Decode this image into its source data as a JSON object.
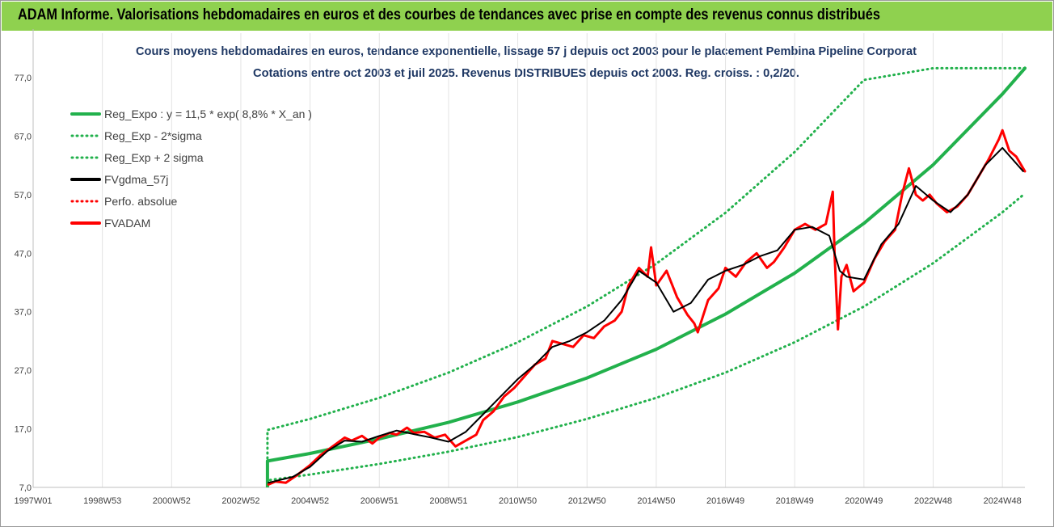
{
  "banner": {
    "title": "ADAM Informe. Valorisations hebdomadaires en euros et des courbes de tendances avec prise en compte des revenus connus distribués",
    "bg_color": "#8fd14f"
  },
  "chart_data": {
    "type": "line",
    "title": "Cours moyens hebdomadaires en euros, tendance exponentielle, lissage 57 j depuis oct 2003 pour le placement Pembina Pipeline Corporat",
    "subtitle": "Cotations entre oct 2003 et juil 2025. Revenus DISTRIBUES depuis oct 2003. Reg. croiss. : 0,2/20.",
    "x_ticks": [
      "1997W01",
      "1998W53",
      "2000W52",
      "2002W52",
      "2004W52",
      "2006W51",
      "2008W51",
      "2010W50",
      "2012W50",
      "2014W50",
      "2016W49",
      "2018W49",
      "2020W49",
      "2022W48",
      "2024W48"
    ],
    "x_tick_years": [
      1997.0,
      1999.0,
      2001.0,
      2003.0,
      2005.0,
      2007.0,
      2009.0,
      2011.0,
      2013.0,
      2015.0,
      2017.0,
      2019.0,
      2021.0,
      2023.0,
      2025.0
    ],
    "x_range": [
      1997.0,
      2025.65
    ],
    "y_ticks": [
      "7,0",
      "17,0",
      "27,0",
      "37,0",
      "47,0",
      "57,0",
      "67,0",
      "77,0"
    ],
    "y_range": [
      7,
      77
    ],
    "grid": "vertical",
    "legend_position": "top-left",
    "legend": [
      {
        "label": "Reg_Expo : y = 11,5 * exp( 8,8% *  X_an )",
        "color": "#22b14c",
        "style": "solid"
      },
      {
        "label": "Reg_Exp - 2*sigma",
        "color": "#22b14c",
        "style": "dotted"
      },
      {
        "label": "Reg_Exp + 2 sigma",
        "color": "#22b14c",
        "style": "dotted"
      },
      {
        "label": "FVgdma_57j",
        "color": "#000000",
        "style": "solid"
      },
      {
        "label": "Perfo. absolue",
        "color": "#ff0000",
        "style": "dotted"
      },
      {
        "label": "FVADAM",
        "color": "#ff0000",
        "style": "solid"
      }
    ],
    "series": [
      {
        "name": "Reg_Expo : y = 11,5 * exp( 8,8% *  X_an )",
        "x": [
          2003.77,
          2005,
          2007,
          2009,
          2011,
          2013,
          2015,
          2017,
          2019,
          2021,
          2023,
          2025,
          2025.65
        ],
        "y": [
          11.5,
          12.8,
          15.3,
          18.1,
          21.6,
          25.7,
          30.6,
          36.6,
          43.6,
          52.1,
          62.1,
          74.2,
          78.6
        ]
      },
      {
        "name": "Reg_Exp - 2*sigma",
        "x": [
          2003.77,
          2005,
          2007,
          2009,
          2011,
          2013,
          2015,
          2017,
          2019,
          2021,
          2023,
          2025,
          2025.65
        ],
        "y": [
          8.2,
          9.2,
          11.0,
          13.1,
          15.6,
          18.7,
          22.3,
          26.6,
          31.8,
          37.9,
          45.3,
          54.0,
          57.2
        ]
      },
      {
        "name": "Reg_Exp + 2 sigma",
        "x": [
          2003.77,
          2005,
          2007,
          2009,
          2011,
          2013,
          2015,
          2017,
          2019,
          2021,
          2023,
          2025,
          2025.65
        ],
        "y": [
          16.8,
          18.7,
          22.3,
          26.6,
          31.8,
          37.9,
          45.2,
          53.9,
          64.3,
          76.6,
          78.6,
          78.6,
          78.6
        ]
      },
      {
        "name": "FVgdma_57j",
        "x": [
          2003.8,
          2004.5,
          2005.0,
          2005.5,
          2006.0,
          2006.5,
          2007.0,
          2007.5,
          2008.0,
          2008.5,
          2009.0,
          2009.5,
          2010.0,
          2010.5,
          2011.0,
          2011.5,
          2012.0,
          2012.5,
          2013.0,
          2013.5,
          2014.0,
          2014.5,
          2015.0,
          2015.5,
          2016.0,
          2016.5,
          2017.0,
          2017.5,
          2018.0,
          2018.5,
          2019.0,
          2019.5,
          2020.0,
          2020.3,
          2020.5,
          2021.0,
          2021.5,
          2022.0,
          2022.5,
          2023.0,
          2023.5,
          2024.0,
          2024.5,
          2025.0,
          2025.6
        ],
        "y": [
          7.8,
          8.8,
          10.5,
          13.2,
          15.0,
          14.8,
          15.8,
          16.7,
          16.1,
          15.5,
          14.8,
          16.5,
          19.5,
          22.5,
          25.5,
          28.0,
          31.0,
          32.0,
          33.5,
          35.5,
          39.0,
          44.0,
          42.0,
          37.0,
          38.5,
          42.5,
          44.0,
          45.0,
          46.5,
          47.5,
          51.0,
          51.5,
          50.0,
          44.0,
          43.0,
          42.5,
          48.5,
          52.0,
          58.5,
          56.0,
          54.0,
          57.0,
          62.0,
          65.0,
          61.0
        ]
      },
      {
        "name": "FVADAM",
        "x": [
          2003.8,
          2004.0,
          2004.3,
          2004.6,
          2005.0,
          2005.3,
          2005.7,
          2006.0,
          2006.2,
          2006.5,
          2006.8,
          2007.0,
          2007.3,
          2007.5,
          2007.8,
          2008.0,
          2008.3,
          2008.6,
          2008.9,
          2009.2,
          2009.5,
          2009.8,
          2010.0,
          2010.3,
          2010.6,
          2010.9,
          2011.2,
          2011.5,
          2011.8,
          2012.0,
          2012.3,
          2012.6,
          2012.9,
          2013.2,
          2013.5,
          2013.8,
          2014.0,
          2014.2,
          2014.5,
          2014.75,
          2014.85,
          2015.0,
          2015.3,
          2015.6,
          2015.9,
          2016.1,
          2016.2,
          2016.5,
          2016.8,
          2017.0,
          2017.3,
          2017.6,
          2017.9,
          2018.2,
          2018.4,
          2018.7,
          2019.0,
          2019.3,
          2019.6,
          2019.9,
          2020.1,
          2020.15,
          2020.25,
          2020.35,
          2020.5,
          2020.7,
          2021.0,
          2021.3,
          2021.6,
          2021.9,
          2022.1,
          2022.3,
          2022.5,
          2022.7,
          2022.9,
          2023.1,
          2023.4,
          2023.7,
          2024.0,
          2024.3,
          2024.6,
          2024.9,
          2025.0,
          2025.2,
          2025.4,
          2025.65
        ],
        "y": [
          7.5,
          8.0,
          7.8,
          9.0,
          10.8,
          12.5,
          14.2,
          15.5,
          15.0,
          15.8,
          14.5,
          15.5,
          16.3,
          16.0,
          17.2,
          16.3,
          16.5,
          15.5,
          16.0,
          14.0,
          15.0,
          16.0,
          18.5,
          20.0,
          22.5,
          24.0,
          26.0,
          28.0,
          29.0,
          32.0,
          31.5,
          31.0,
          33.0,
          32.5,
          34.5,
          35.5,
          37.0,
          41.5,
          44.5,
          43.0,
          48.0,
          41.5,
          44.0,
          39.5,
          36.5,
          35.0,
          33.5,
          39.0,
          41.0,
          44.5,
          43.0,
          45.5,
          47.0,
          44.5,
          45.5,
          48.0,
          51.0,
          52.0,
          51.0,
          52.0,
          57.5,
          47.0,
          34.0,
          43.0,
          45.0,
          40.5,
          42.0,
          46.0,
          49.0,
          51.0,
          57.0,
          61.5,
          57.0,
          56.0,
          57.0,
          55.5,
          54.0,
          55.0,
          57.0,
          60.0,
          63.0,
          66.5,
          68.0,
          64.5,
          63.5,
          61.0
        ]
      }
    ]
  }
}
